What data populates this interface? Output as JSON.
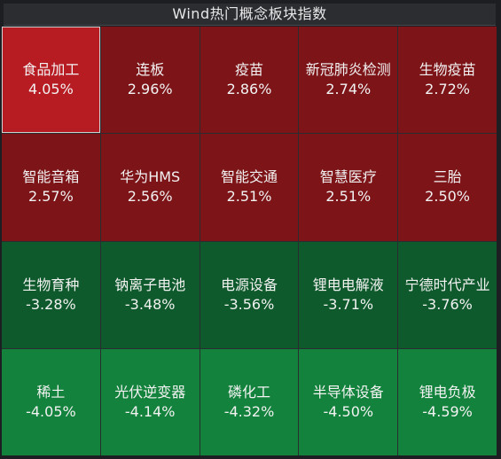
{
  "title": "Wind热门概念板块指数",
  "colors": {
    "top": "#b81c23",
    "up": "#7c1418",
    "down_dark": "#0f5a2c",
    "down": "#13823c"
  },
  "cells": [
    {
      "name": "食品加工",
      "pct": "4.05%"
    },
    {
      "name": "连板",
      "pct": "2.96%"
    },
    {
      "name": "疫苗",
      "pct": "2.86%"
    },
    {
      "name": "新冠肺炎检测",
      "pct": "2.74%"
    },
    {
      "name": "生物疫苗",
      "pct": "2.72%"
    },
    {
      "name": "智能音箱",
      "pct": "2.57%"
    },
    {
      "name": "华为HMS",
      "pct": "2.56%"
    },
    {
      "name": "智能交通",
      "pct": "2.51%"
    },
    {
      "name": "智慧医疗",
      "pct": "2.51%"
    },
    {
      "name": "三胎",
      "pct": "2.50%"
    },
    {
      "name": "生物育种",
      "pct": "-3.28%"
    },
    {
      "name": "钠离子电池",
      "pct": "-3.48%"
    },
    {
      "name": "电源设备",
      "pct": "-3.56%"
    },
    {
      "name": "锂电电解液",
      "pct": "-3.71%"
    },
    {
      "name": "宁德时代产业",
      "pct": "-3.76%"
    },
    {
      "name": "稀土",
      "pct": "-4.05%"
    },
    {
      "name": "光伏逆变器",
      "pct": "-4.14%"
    },
    {
      "name": "磷化工",
      "pct": "-4.32%"
    },
    {
      "name": "半导体设备",
      "pct": "-4.50%"
    },
    {
      "name": "锂电负极",
      "pct": "-4.59%"
    }
  ]
}
